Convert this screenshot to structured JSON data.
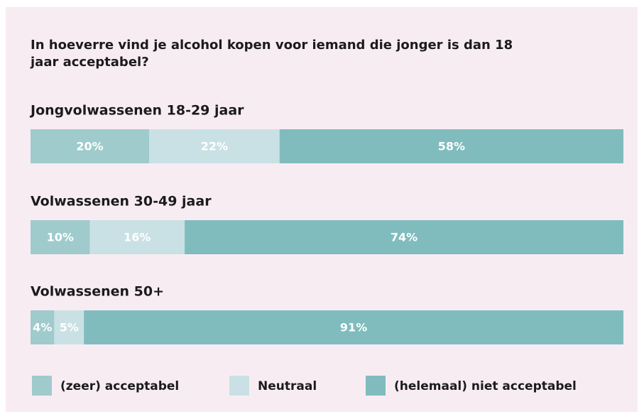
{
  "chart_data": {
    "type": "bar",
    "orientation": "horizontal",
    "stacked": true,
    "title": "In hoeverre vind je alcohol kopen voor iemand die jonger is dan 18 jaar acceptabel?",
    "categories": [
      "Jongvolwassenen 18-29 jaar",
      "Volwassenen 30-49 jaar",
      "Volwassenen 50+"
    ],
    "series": [
      {
        "name": "(zeer) acceptabel",
        "color": "#9fcbcc",
        "values": [
          20,
          10,
          4
        ],
        "value_labels": [
          "20%",
          "10%",
          "4%"
        ]
      },
      {
        "name": "Neutraal",
        "color": "#c9e1e4",
        "values": [
          22,
          16,
          5
        ],
        "value_labels": [
          "22%",
          "16%",
          "5%"
        ]
      },
      {
        "name": "(helemaal) niet acceptabel",
        "color": "#80bcbe",
        "values": [
          58,
          74,
          91
        ],
        "value_labels": [
          "58%",
          "74%",
          "91%"
        ]
      }
    ],
    "legend": "bottom"
  }
}
